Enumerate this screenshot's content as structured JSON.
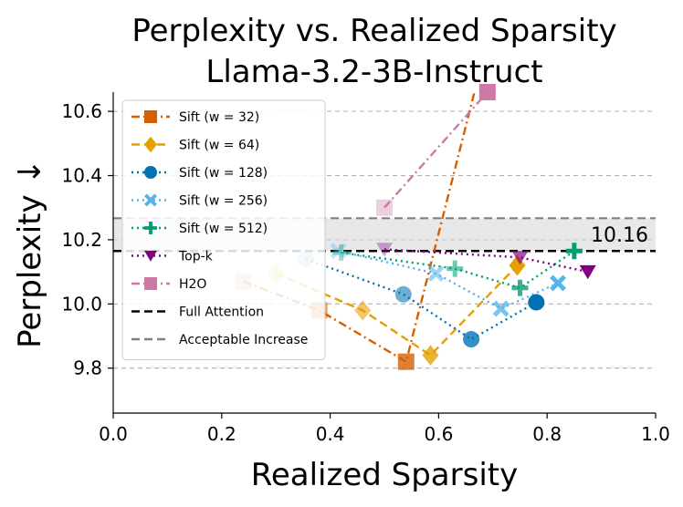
{
  "chart_data": {
    "type": "scatter",
    "title": "Perplexity vs. Realized Sparsity",
    "subtitle": "Llama-3.2-3B-Instruct",
    "xlabel": "Realized Sparsity",
    "ylabel": "Perplexity ↓",
    "xlim": [
      0.0,
      1.0
    ],
    "ylim": [
      9.66,
      10.66
    ],
    "xticks": [
      0.0,
      0.2,
      0.4,
      0.6,
      0.8,
      1.0
    ],
    "xtick_labels": [
      "0.0",
      "0.2",
      "0.4",
      "0.6",
      "0.8",
      "1.0"
    ],
    "yticks": [
      9.8,
      10.0,
      10.2,
      10.4,
      10.6
    ],
    "ytick_labels": [
      "9.8",
      "10.0",
      "10.2",
      "10.4",
      "10.6"
    ],
    "grid": "horizontal dashed",
    "legend_position": "upper-left",
    "full_attention": 10.165,
    "acceptable_increase": 10.267,
    "annotation": "10.16",
    "series": [
      {
        "name": "Sift (w = 32)",
        "color": "#d55e00",
        "marker": "square",
        "line": "dashdot",
        "points": [
          [
            0.24,
            10.07
          ],
          [
            0.38,
            9.98
          ],
          [
            0.54,
            9.82
          ],
          [
            0.675,
            10.72
          ]
        ]
      },
      {
        "name": "Sift (w = 64)",
        "color": "#e69f00",
        "marker": "diamond",
        "line": "dashed",
        "points": [
          [
            0.3,
            10.095
          ],
          [
            0.46,
            9.98
          ],
          [
            0.585,
            9.84
          ],
          [
            0.745,
            10.12
          ]
        ]
      },
      {
        "name": "Sift (w = 128)",
        "color": "#0072b2",
        "marker": "circle",
        "line": "dotted",
        "points": [
          [
            0.355,
            10.14
          ],
          [
            0.535,
            10.03
          ],
          [
            0.66,
            9.89
          ],
          [
            0.78,
            10.005
          ]
        ]
      },
      {
        "name": "Sift (w = 256)",
        "color": "#56b4e9",
        "marker": "x",
        "line": "dotted",
        "points": [
          [
            0.415,
            10.165
          ],
          [
            0.595,
            10.095
          ],
          [
            0.715,
            9.985
          ],
          [
            0.82,
            10.065
          ]
        ]
      },
      {
        "name": "Sift (w = 512)",
        "color": "#009e73",
        "marker": "plus",
        "line": "dotted",
        "points": [
          [
            0.42,
            10.16
          ],
          [
            0.63,
            10.11
          ],
          [
            0.75,
            10.05
          ],
          [
            0.85,
            10.165
          ]
        ]
      },
      {
        "name": "Top-k",
        "color": "#800080",
        "marker": "triangle-down",
        "line": "dotted",
        "points": [
          [
            0.5,
            10.17
          ],
          [
            0.75,
            10.145
          ],
          [
            0.875,
            10.1
          ]
        ]
      },
      {
        "name": "H2O",
        "color": "#cc79a7",
        "marker": "square",
        "line": "dashdot",
        "points": [
          [
            0.5,
            10.3
          ],
          [
            0.69,
            10.66
          ]
        ]
      }
    ],
    "legend_extra": [
      {
        "name": "Full Attention",
        "color": "#000000",
        "line": "dashed"
      },
      {
        "name": "Acceptable Increase",
        "color": "#808080",
        "line": "dashed"
      }
    ]
  }
}
